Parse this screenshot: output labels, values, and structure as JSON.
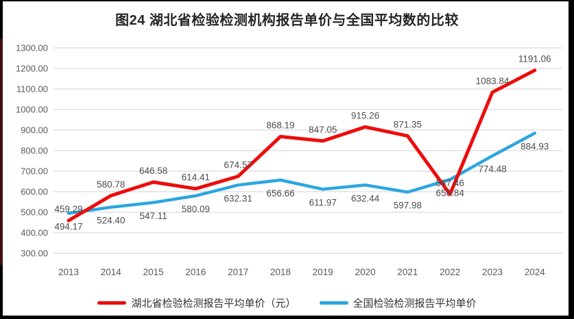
{
  "title": "图24 湖北省检验检测机构报告单价与全国平均数的比较",
  "chart_data": {
    "type": "line",
    "title": "图24 湖北省检验检测机构报告单价与全国平均数的比较",
    "categories": [
      "2013",
      "2014",
      "2015",
      "2016",
      "2017",
      "2018",
      "2019",
      "2020",
      "2021",
      "2022",
      "2023",
      "2024"
    ],
    "series": [
      {
        "name": "湖北省检验检测报告平均单价（元）",
        "color": "#ed0c0c",
        "label_position": "above",
        "values": [
          459.29,
          580.78,
          646.58,
          614.41,
          674.57,
          868.19,
          847.05,
          915.26,
          871.35,
          587.46,
          1083.84,
          1191.06
        ]
      },
      {
        "name": "全国检验检测报告平均单价",
        "color": "#2ca6e0",
        "label_position": "below",
        "values": [
          494.17,
          524.4,
          547.11,
          580.09,
          632.31,
          656.66,
          611.97,
          632.44,
          597.98,
          658.84,
          774.48,
          884.93
        ]
      }
    ],
    "y_ticks": [
      "1300.00",
      "1200.00",
      "1100.00",
      "1000.00",
      "900.00",
      "800.00",
      "700.00",
      "600.00",
      "500.00",
      "400.00",
      "300.00"
    ],
    "ylim": [
      300,
      1300
    ],
    "grid": true,
    "legend_position": "bottom",
    "colors": {
      "gridline": "#d9d9d9",
      "axis_text": "#595959",
      "data_label_text": "#4d4d4d",
      "title_text": "#262626"
    }
  }
}
